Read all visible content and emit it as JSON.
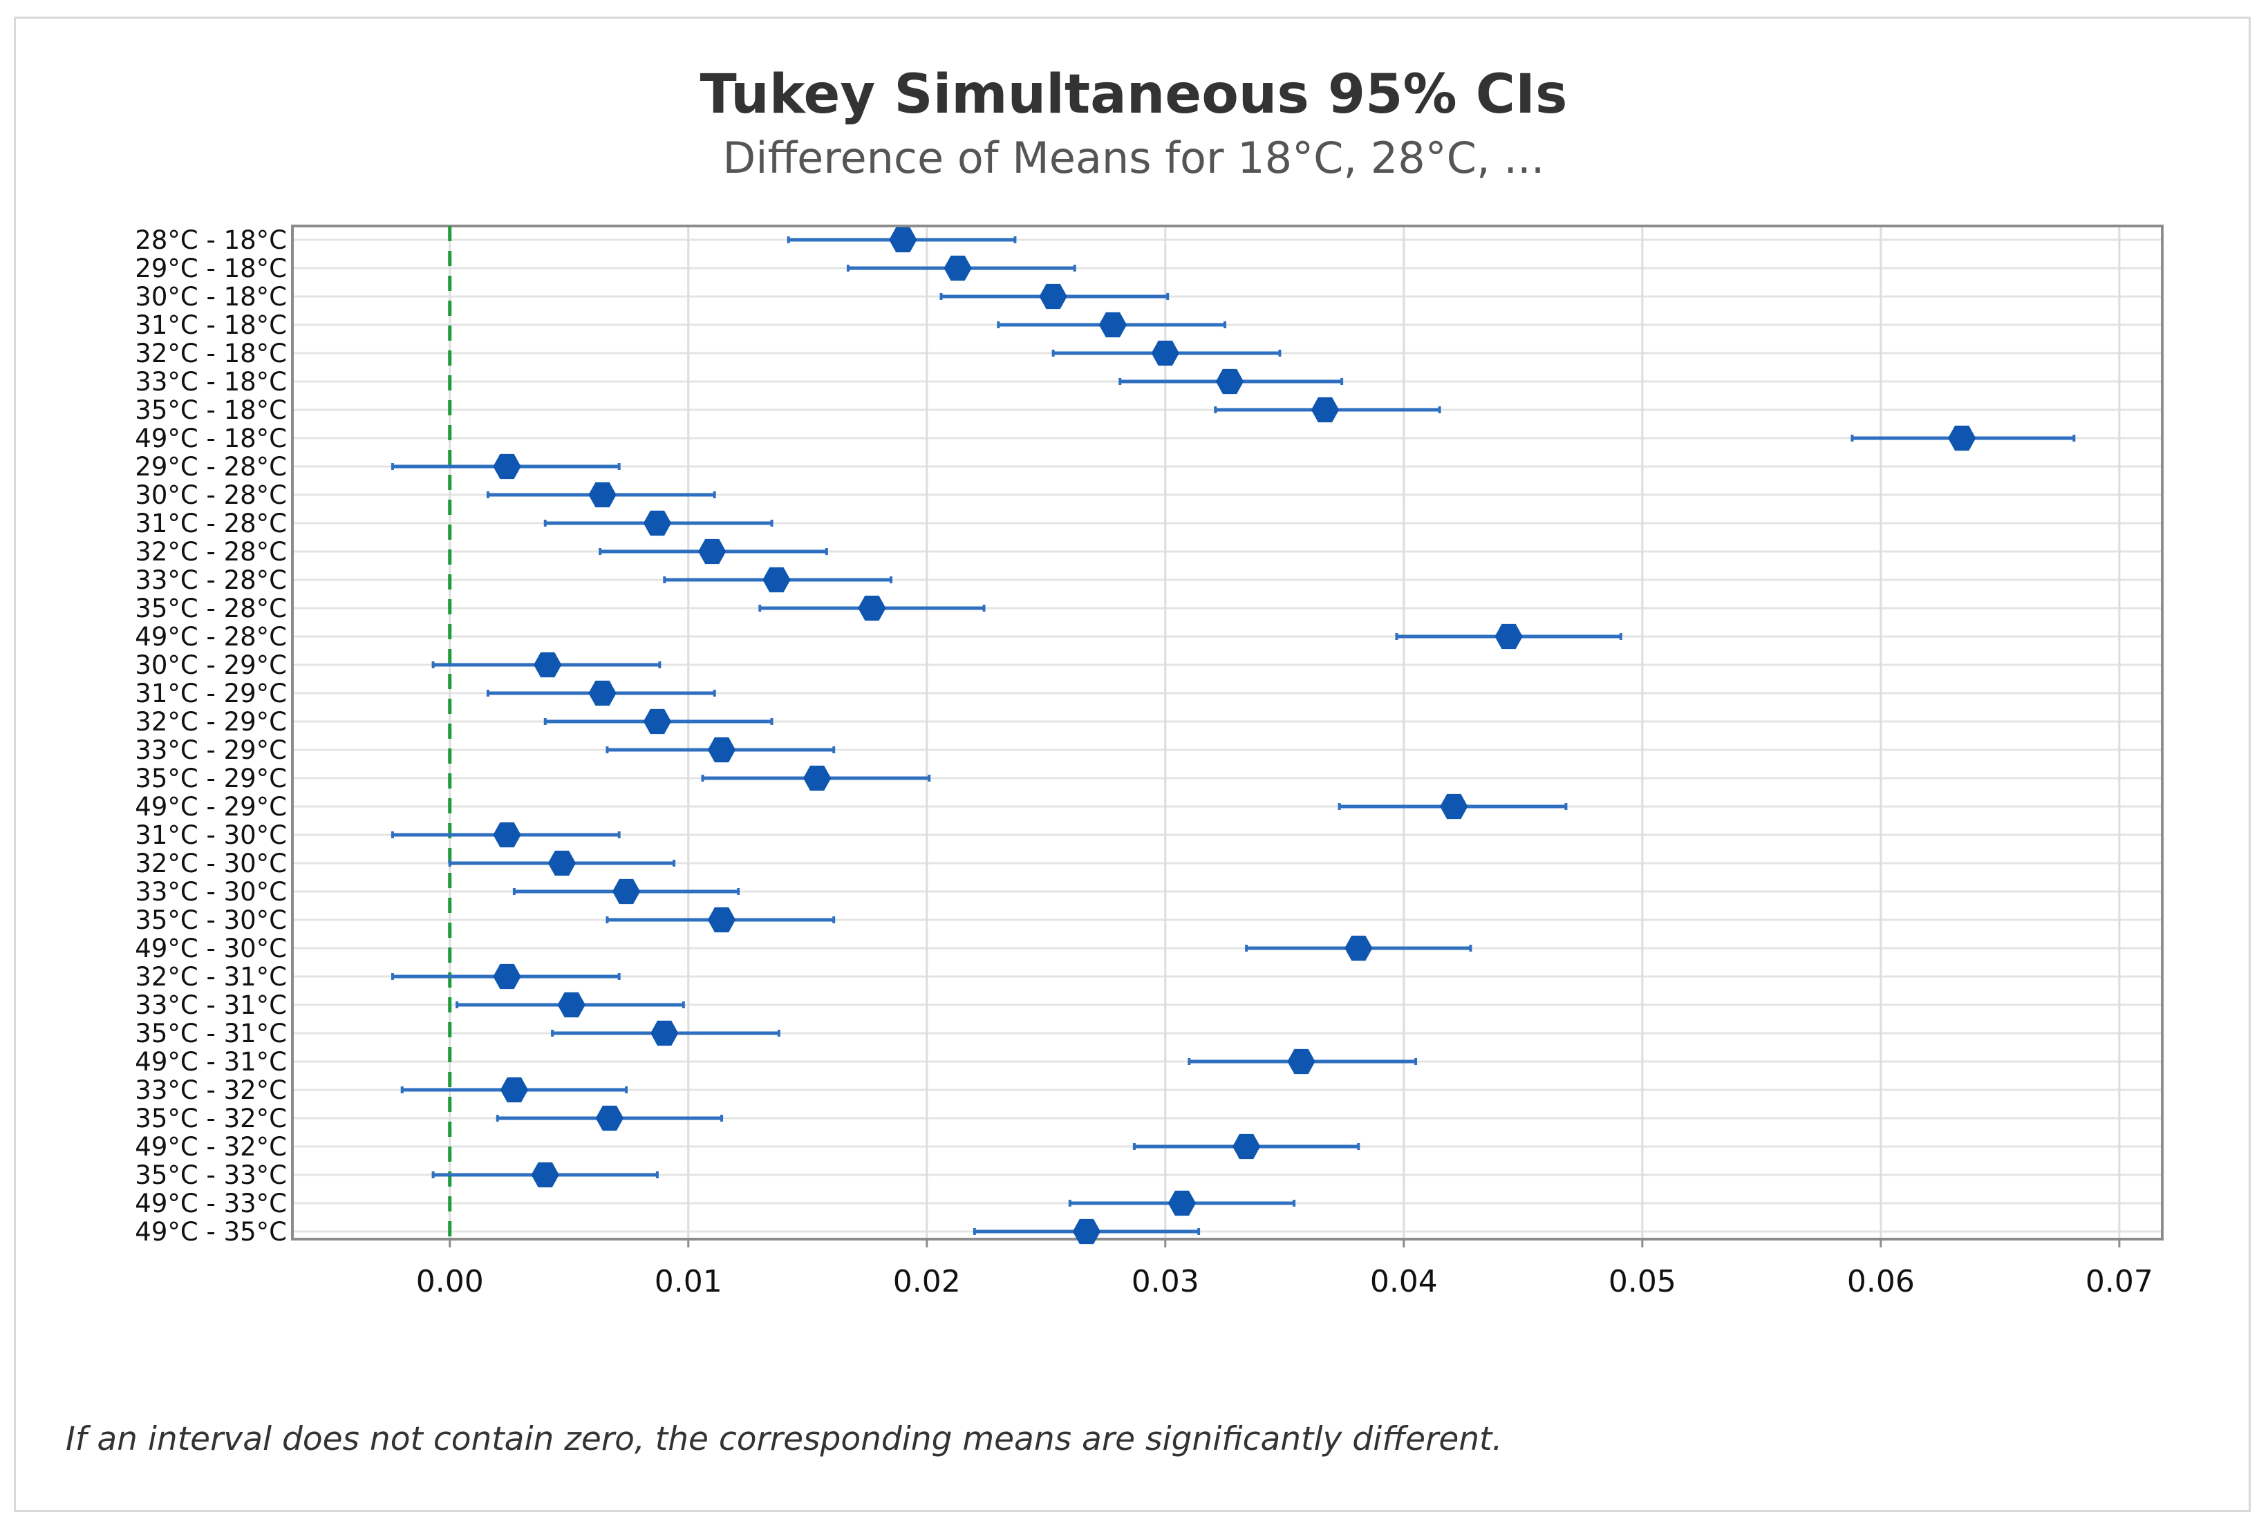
{
  "chart_data": {
    "type": "interval",
    "title": "Tukey Simultaneous 95% CIs",
    "subtitle": "Difference of Means for 18°C, 28°C, ...",
    "xlabel": "",
    "ylabel": "",
    "xlim": [
      -0.0066,
      0.0718
    ],
    "xticks": [
      0.0,
      0.01,
      0.02,
      0.03,
      0.04,
      0.05,
      0.06,
      0.07
    ],
    "xtick_labels": [
      "0.00",
      "0.01",
      "0.02",
      "0.03",
      "0.04",
      "0.05",
      "0.06",
      "0.07"
    ],
    "reference_line": 0.0,
    "grid": true,
    "point_color": "#0e56b0",
    "line_color": "#2f6fbf",
    "reference_color": "#1e9b3a",
    "footnote": "If an interval does not contain zero, the corresponding means are significantly different.",
    "series": [
      {
        "label": "28°C - 18°C",
        "mean": 0.019,
        "lower": 0.0142,
        "upper": 0.0237
      },
      {
        "label": "29°C - 18°C",
        "mean": 0.0213,
        "lower": 0.0167,
        "upper": 0.0262
      },
      {
        "label": "30°C - 18°C",
        "mean": 0.0253,
        "lower": 0.0206,
        "upper": 0.0301
      },
      {
        "label": "31°C - 18°C",
        "mean": 0.0278,
        "lower": 0.023,
        "upper": 0.0325
      },
      {
        "label": "32°C - 18°C",
        "mean": 0.03,
        "lower": 0.0253,
        "upper": 0.0348
      },
      {
        "label": "33°C - 18°C",
        "mean": 0.0327,
        "lower": 0.0281,
        "upper": 0.0374
      },
      {
        "label": "35°C - 18°C",
        "mean": 0.0367,
        "lower": 0.0321,
        "upper": 0.0415
      },
      {
        "label": "49°C - 18°C",
        "mean": 0.0634,
        "lower": 0.0588,
        "upper": 0.0681
      },
      {
        "label": "29°C - 28°C",
        "mean": 0.0024,
        "lower": -0.0024,
        "upper": 0.0071
      },
      {
        "label": "30°C - 28°C",
        "mean": 0.0064,
        "lower": 0.0016,
        "upper": 0.0111
      },
      {
        "label": "31°C - 28°C",
        "mean": 0.0087,
        "lower": 0.004,
        "upper": 0.0135
      },
      {
        "label": "32°C - 28°C",
        "mean": 0.011,
        "lower": 0.0063,
        "upper": 0.0158
      },
      {
        "label": "33°C - 28°C",
        "mean": 0.0137,
        "lower": 0.009,
        "upper": 0.0185
      },
      {
        "label": "35°C - 28°C",
        "mean": 0.0177,
        "lower": 0.013,
        "upper": 0.0224
      },
      {
        "label": "49°C - 28°C",
        "mean": 0.0444,
        "lower": 0.0397,
        "upper": 0.0491
      },
      {
        "label": "30°C - 29°C",
        "mean": 0.0041,
        "lower": -0.0007,
        "upper": 0.0088
      },
      {
        "label": "31°C - 29°C",
        "mean": 0.0064,
        "lower": 0.0016,
        "upper": 0.0111
      },
      {
        "label": "32°C - 29°C",
        "mean": 0.0087,
        "lower": 0.004,
        "upper": 0.0135
      },
      {
        "label": "33°C - 29°C",
        "mean": 0.0114,
        "lower": 0.0066,
        "upper": 0.0161
      },
      {
        "label": "35°C - 29°C",
        "mean": 0.0154,
        "lower": 0.0106,
        "upper": 0.0201
      },
      {
        "label": "49°C - 29°C",
        "mean": 0.0421,
        "lower": 0.0373,
        "upper": 0.0468
      },
      {
        "label": "31°C - 30°C",
        "mean": 0.0024,
        "lower": -0.0024,
        "upper": 0.0071
      },
      {
        "label": "32°C - 30°C",
        "mean": 0.0047,
        "lower": 0.0,
        "upper": 0.0094
      },
      {
        "label": "33°C - 30°C",
        "mean": 0.0074,
        "lower": 0.0027,
        "upper": 0.0121
      },
      {
        "label": "35°C - 30°C",
        "mean": 0.0114,
        "lower": 0.0066,
        "upper": 0.0161
      },
      {
        "label": "49°C - 30°C",
        "mean": 0.0381,
        "lower": 0.0334,
        "upper": 0.0428
      },
      {
        "label": "32°C - 31°C",
        "mean": 0.0024,
        "lower": -0.0024,
        "upper": 0.0071
      },
      {
        "label": "33°C - 31°C",
        "mean": 0.0051,
        "lower": 0.0003,
        "upper": 0.0098
      },
      {
        "label": "35°C - 31°C",
        "mean": 0.009,
        "lower": 0.0043,
        "upper": 0.0138
      },
      {
        "label": "49°C - 31°C",
        "mean": 0.0357,
        "lower": 0.031,
        "upper": 0.0405
      },
      {
        "label": "33°C - 32°C",
        "mean": 0.0027,
        "lower": -0.002,
        "upper": 0.0074
      },
      {
        "label": "35°C - 32°C",
        "mean": 0.0067,
        "lower": 0.002,
        "upper": 0.0114
      },
      {
        "label": "49°C - 32°C",
        "mean": 0.0334,
        "lower": 0.0287,
        "upper": 0.0381
      },
      {
        "label": "35°C - 33°C",
        "mean": 0.004,
        "lower": -0.0007,
        "upper": 0.0087
      },
      {
        "label": "49°C - 33°C",
        "mean": 0.0307,
        "lower": 0.026,
        "upper": 0.0354
      },
      {
        "label": "49°C - 35°C",
        "mean": 0.0267,
        "lower": 0.022,
        "upper": 0.0314
      }
    ]
  }
}
